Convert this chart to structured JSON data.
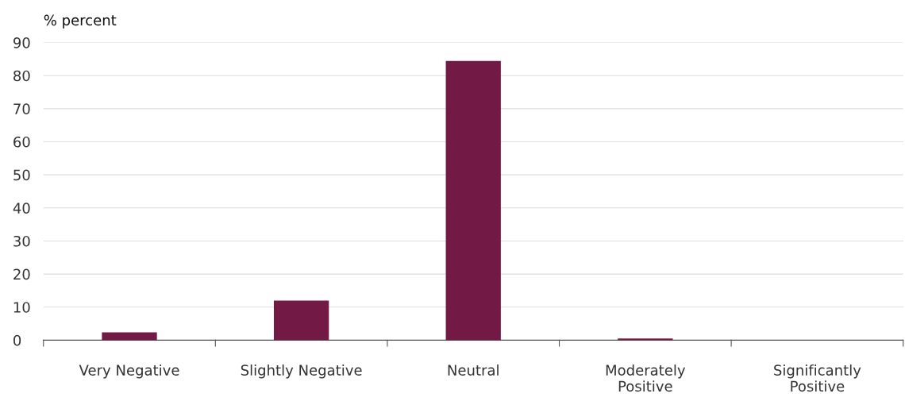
{
  "chart_data": {
    "type": "bar",
    "ylabel": "% percent",
    "categories": [
      "Very Negative",
      "Slightly Negative",
      "Neutral",
      "Moderately\nPositive",
      "Significantly\nPositive"
    ],
    "values": [
      2.4,
      12.0,
      84.4,
      0.5,
      0
    ],
    "color": "#721a45",
    "ylim": [
      0,
      90
    ],
    "yticks": [
      0,
      10,
      20,
      30,
      40,
      50,
      60,
      70,
      80,
      90
    ],
    "grid": "y"
  }
}
